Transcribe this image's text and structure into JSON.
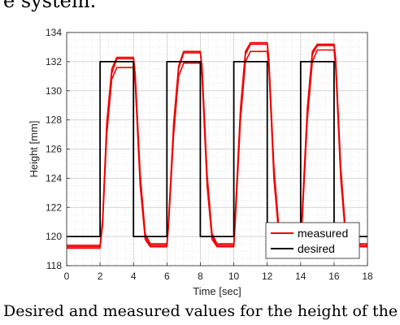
{
  "page": {
    "top_text": "e system.",
    "caption": "Desired and measured values for the height of the ro"
  },
  "chart_data": {
    "type": "line",
    "title": "",
    "xlabel": "Time [sec]",
    "ylabel": "Height [mm]",
    "xlim": [
      0,
      18
    ],
    "ylim": [
      118,
      134
    ],
    "xticks": [
      0,
      2,
      4,
      6,
      8,
      10,
      12,
      14,
      16,
      18
    ],
    "yticks": [
      118,
      120,
      122,
      124,
      126,
      128,
      130,
      132,
      134
    ],
    "grid": true,
    "minor_grid": true,
    "legend_position": "bottom-right",
    "legend": [
      "measured",
      "desired"
    ],
    "series": [
      {
        "name": "desired",
        "color": "#000000",
        "x": [
          0,
          2.0,
          2.0,
          4.0,
          4.0,
          6.0,
          6.0,
          8.0,
          8.0,
          10.0,
          10.0,
          12.0,
          12.0,
          14.0,
          14.0,
          16.0,
          16.0,
          18.0
        ],
        "y": [
          120,
          120,
          132,
          132,
          120,
          120,
          132,
          132,
          120,
          120,
          132,
          132,
          120,
          120,
          132,
          132,
          120,
          120
        ]
      },
      {
        "name": "measured",
        "color": "#ee0000",
        "x": [
          0,
          2.0,
          2.15,
          2.4,
          2.7,
          3.0,
          4.0,
          4.1,
          4.4,
          4.7,
          5.0,
          6.0,
          6.1,
          6.4,
          6.7,
          7.0,
          8.0,
          8.1,
          8.4,
          8.7,
          9.0,
          10.0,
          10.1,
          10.4,
          10.7,
          11.0,
          12.0,
          12.1,
          12.4,
          12.7,
          13.0,
          14.0,
          14.1,
          14.4,
          14.7,
          15.0,
          16.0,
          16.1,
          16.4,
          16.7,
          17.0,
          18.0
        ],
        "y": [
          119.3,
          119.3,
          121.0,
          127.5,
          131.2,
          132.2,
          132.2,
          131.0,
          124.0,
          120.0,
          119.4,
          119.4,
          121.0,
          127.5,
          131.5,
          132.6,
          132.6,
          131.5,
          124.0,
          120.0,
          119.4,
          119.4,
          121.5,
          128.5,
          132.5,
          133.2,
          133.2,
          132.0,
          124.5,
          120.3,
          119.6,
          119.6,
          121.5,
          128.5,
          132.5,
          133.1,
          133.1,
          132.0,
          124.5,
          120.0,
          119.4,
          119.4
        ]
      },
      {
        "name": "measured",
        "color": "#ee0000",
        "x": [
          0,
          2.0,
          2.15,
          2.4,
          2.7,
          3.0,
          4.0,
          4.1,
          4.4,
          4.7,
          5.0,
          6.0,
          6.1,
          6.4,
          6.7,
          7.0,
          8.0,
          8.1,
          8.4,
          8.7,
          9.0,
          10.0,
          10.1,
          10.4,
          10.7,
          11.0,
          12.0,
          12.1,
          12.4,
          12.7,
          13.0,
          14.0,
          14.1,
          14.4,
          14.7,
          15.0,
          16.0,
          16.1,
          16.4,
          16.7,
          17.0,
          18.0
        ],
        "y": [
          119.2,
          119.2,
          120.8,
          127.0,
          130.8,
          131.6,
          131.6,
          130.5,
          123.5,
          119.8,
          119.3,
          119.3,
          120.8,
          127.0,
          131.0,
          131.9,
          131.9,
          131.0,
          123.5,
          119.8,
          119.3,
          119.3,
          121.2,
          128.0,
          132.0,
          132.7,
          132.7,
          131.6,
          124.0,
          120.0,
          119.5,
          119.5,
          121.2,
          128.0,
          132.0,
          132.8,
          132.8,
          131.6,
          124.0,
          119.8,
          119.3,
          119.3
        ]
      },
      {
        "name": "measured",
        "color": "#ee0000",
        "x": [
          0,
          2.0,
          2.15,
          2.4,
          2.7,
          3.0,
          4.0,
          4.1,
          4.4,
          4.7,
          5.0,
          6.0,
          6.1,
          6.4,
          6.7,
          7.0,
          8.0,
          8.1,
          8.4,
          8.7,
          9.0,
          10.0,
          10.1,
          10.4,
          10.7,
          11.0,
          12.0,
          12.1,
          12.4,
          12.7,
          13.0,
          14.0,
          14.1,
          14.4,
          14.7,
          15.0,
          16.0,
          16.1,
          16.4,
          16.7,
          17.0,
          18.0
        ],
        "y": [
          119.4,
          119.4,
          121.2,
          127.8,
          131.5,
          132.3,
          132.3,
          131.2,
          124.3,
          120.2,
          119.5,
          119.5,
          121.2,
          127.8,
          131.7,
          132.7,
          132.7,
          131.7,
          124.3,
          120.2,
          119.5,
          119.5,
          121.8,
          128.8,
          132.7,
          133.3,
          133.3,
          132.2,
          124.8,
          120.5,
          119.7,
          119.7,
          121.8,
          128.8,
          132.7,
          133.2,
          133.2,
          132.2,
          124.8,
          120.2,
          119.5,
          119.5
        ]
      }
    ]
  }
}
